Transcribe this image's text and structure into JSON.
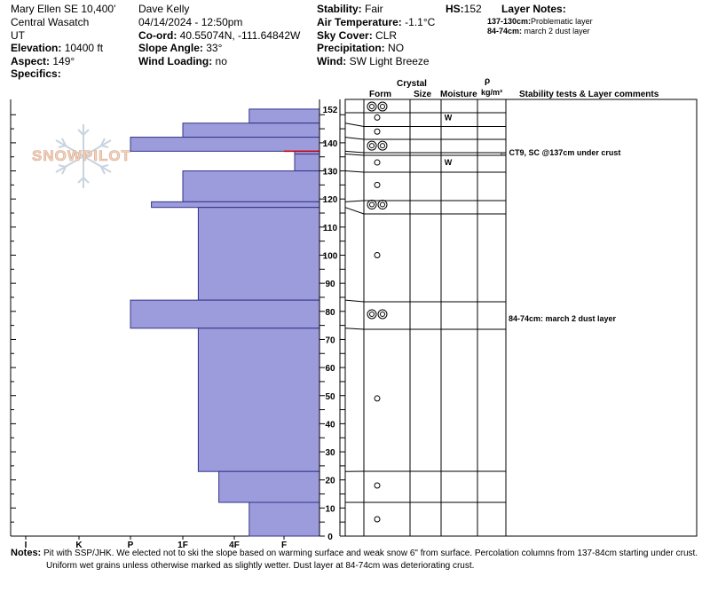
{
  "header": {
    "location": "Mary Ellen SE 10,400'",
    "range": "Central Wasatch",
    "state": "UT",
    "elevation_label": "Elevation:",
    "elevation": "10400 ft",
    "aspect_label": "Aspect:",
    "aspect": "149°",
    "specifics_label": "Specifics:",
    "observer": "Dave Kelly",
    "datetime": "04/14/2024 - 12:50pm",
    "coord_label": "Co-ord:",
    "coord": "40.55074N, -111.64842W",
    "slope_label": "Slope Angle:",
    "slope": "33°",
    "wind_loading_label": "Wind Loading:",
    "wind_loading": "no",
    "stability_label": "Stability:",
    "stability": "Fair",
    "air_temp_label": "Air Temperature:",
    "air_temp": "-1.1°C",
    "sky_label": "Sky Cover:",
    "sky": "CLR",
    "precip_label": "Precipitation:",
    "precip": "NO",
    "wind_label": "Wind:",
    "wind": "SW Light Breeze",
    "hs_label": "HS:",
    "hs": "152",
    "layer_notes_title": "Layer Notes:",
    "layer_notes": [
      {
        "range": "137-130cm:",
        "text": "Problematic layer"
      },
      {
        "range": "84-74cm:",
        "text": "march 2 dust layer"
      }
    ]
  },
  "logo": {
    "text": "SNOWPILOT"
  },
  "columns": {
    "form": "Form",
    "crystal": "Crystal",
    "size": "Size",
    "moisture": "Moisture",
    "rho": "ρ",
    "density": "kg/m³",
    "stability": "Stability tests & Layer comments"
  },
  "hardness_labels": [
    "I",
    "K",
    "P",
    "1F",
    "4F",
    "F"
  ],
  "depth_labels": [
    "0",
    "10",
    "20",
    "30",
    "40",
    "50",
    "60",
    "70",
    "80",
    "90",
    "100",
    "110",
    "120",
    "130",
    "140",
    "152"
  ],
  "comments": [
    {
      "depth": 137,
      "text": "CT9, SC @137cm under crust",
      "arrow": "←"
    },
    {
      "depth": 79,
      "text": "84-74cm: march 2 dust layer"
    }
  ],
  "chart_data": {
    "type": "snow-profile",
    "height_cm": 152,
    "hardness_scale": [
      "F",
      "4F",
      "1F",
      "P",
      "K",
      "I"
    ],
    "hardness_note": "0 = none, 1 = F, 2 = 4F, 3 = 1F, 4 = P, 5 = K, 6 = I",
    "layers": [
      {
        "top": 152,
        "bottom": 147,
        "hardness": 1.7
      },
      {
        "top": 147,
        "bottom": 142,
        "hardness": 3.0
      },
      {
        "top": 142,
        "bottom": 137,
        "hardness": 4.0
      },
      {
        "top": 137,
        "bottom": 136,
        "hardness": 0.7
      },
      {
        "top": 136,
        "bottom": 130,
        "hardness": 0.7
      },
      {
        "top": 130,
        "bottom": 119,
        "hardness": 3.0
      },
      {
        "top": 119,
        "bottom": 117,
        "hardness": 3.6
      },
      {
        "top": 117,
        "bottom": 84,
        "hardness": 2.7
      },
      {
        "top": 84,
        "bottom": 74,
        "hardness": 4.0
      },
      {
        "top": 74,
        "bottom": 23,
        "hardness": 2.7
      },
      {
        "top": 23,
        "bottom": 12,
        "hardness": 2.3
      },
      {
        "top": 12,
        "bottom": 0,
        "hardness": 1.7
      }
    ],
    "crust_depth": 137,
    "grain_symbols": [
      {
        "depth": 152,
        "type": "double"
      },
      {
        "depth": 149,
        "type": "single"
      },
      {
        "depth": 144,
        "type": "single"
      },
      {
        "depth": 139,
        "type": "double"
      },
      {
        "depth": 133,
        "type": "single"
      },
      {
        "depth": 125,
        "type": "single"
      },
      {
        "depth": 118,
        "type": "double"
      },
      {
        "depth": 100,
        "type": "single"
      },
      {
        "depth": 79,
        "type": "double"
      },
      {
        "depth": 49,
        "type": "single"
      },
      {
        "depth": 18,
        "type": "single"
      },
      {
        "depth": 6,
        "type": "single"
      }
    ],
    "moisture": [
      {
        "depth": 149,
        "value": "W"
      },
      {
        "depth": 133,
        "value": "W"
      }
    ]
  },
  "notes": {
    "label": "Notes:",
    "line1": "Pit with SSP/JHK.  We elected not to ski the slope based on warming surface and weak snow 6\" from surface. Percolation columns from 137-84cm starting under crust.",
    "line2": "Uniform wet grains unless otherwise marked as slightly wetter.  Dust layer at 84-74cm was deteriorating crust."
  }
}
